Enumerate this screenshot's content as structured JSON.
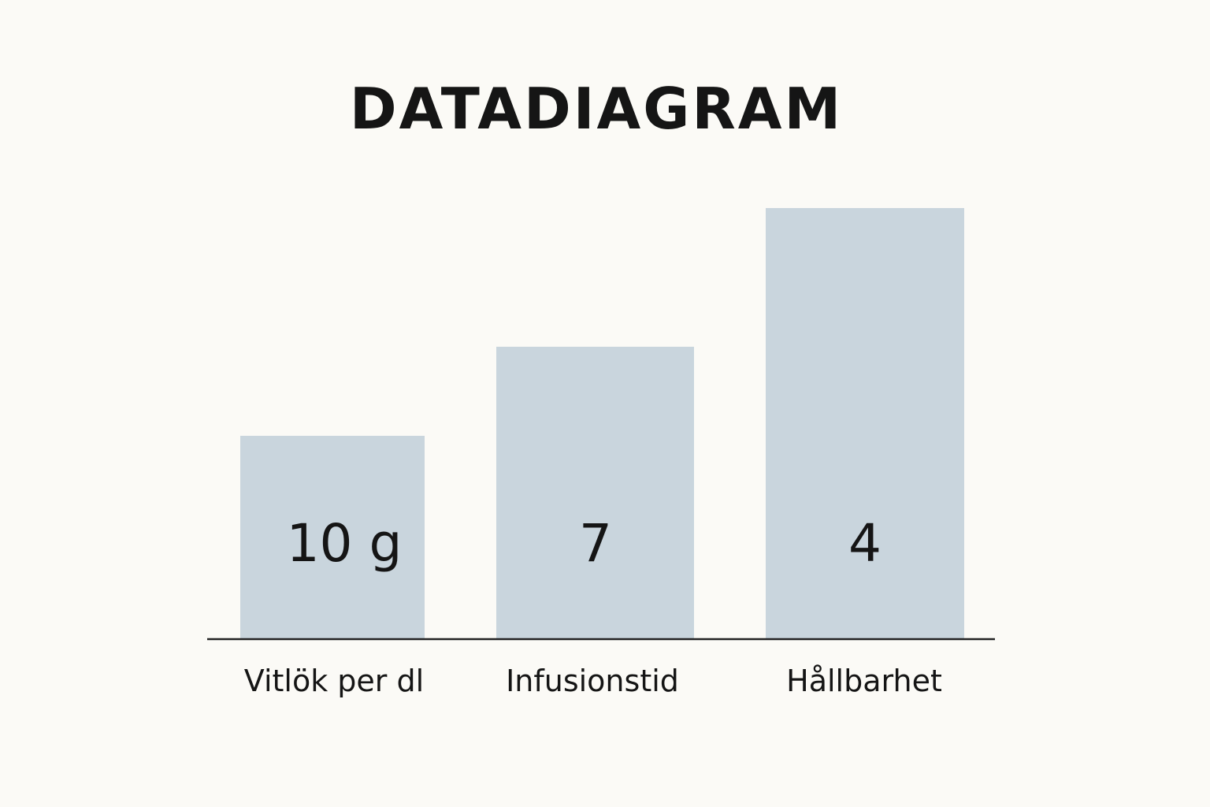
{
  "title": "DATADIAGRAM",
  "bars": [
    {
      "label": "Vitlök per dl",
      "value_label": "10 g"
    },
    {
      "label": "Infusionstid",
      "value_label": "7"
    },
    {
      "label": "Hållbarhet",
      "value_label": "4"
    }
  ]
}
